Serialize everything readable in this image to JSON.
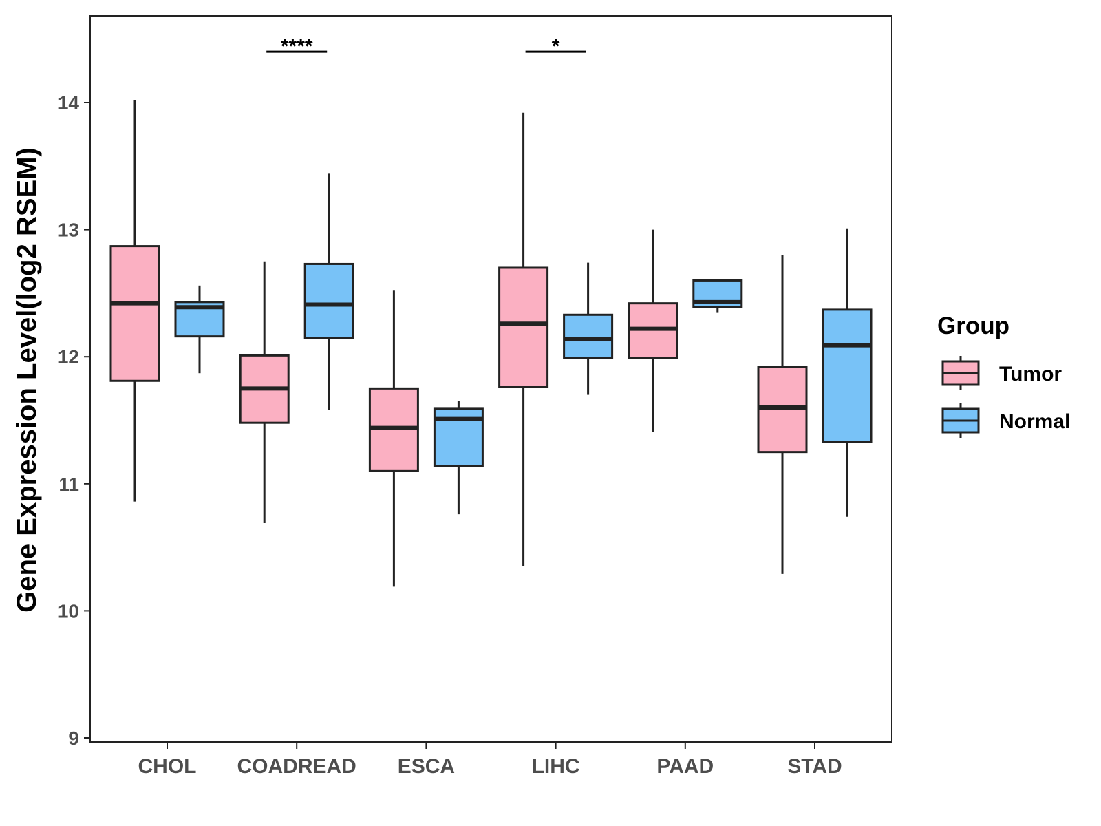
{
  "chart_data": {
    "type": "boxplot",
    "title": "",
    "xlabel": "",
    "ylabel": "Gene Expression Level(log2 RSEM)",
    "ylim": [
      9,
      14.75
    ],
    "yticks": [
      9,
      10,
      11,
      12,
      13,
      14
    ],
    "categories": [
      "CHOL",
      "COADREAD",
      "ESCA",
      "LIHC",
      "PAAD",
      "STAD"
    ],
    "legend": {
      "title": "Group",
      "position": "right"
    },
    "series": [
      {
        "name": "Tumor",
        "color": "#FBB0C2",
        "boxes": [
          {
            "category": "CHOL",
            "min": 10.86,
            "q1": 11.81,
            "median": 12.42,
            "q3": 12.87,
            "max": 14.02
          },
          {
            "category": "COADREAD",
            "min": 10.69,
            "q1": 11.48,
            "median": 11.75,
            "q3": 12.01,
            "max": 12.75
          },
          {
            "category": "ESCA",
            "min": 10.19,
            "q1": 11.1,
            "median": 11.44,
            "q3": 11.75,
            "max": 12.52
          },
          {
            "category": "LIHC",
            "min": 10.35,
            "q1": 11.76,
            "median": 12.26,
            "q3": 12.7,
            "max": 13.92
          },
          {
            "category": "PAAD",
            "min": 11.41,
            "q1": 11.99,
            "median": 12.22,
            "q3": 12.42,
            "max": 13.0
          },
          {
            "category": "STAD",
            "min": 10.29,
            "q1": 11.25,
            "median": 11.6,
            "q3": 11.92,
            "max": 12.8
          }
        ]
      },
      {
        "name": "Normal",
        "color": "#78C2F7",
        "boxes": [
          {
            "category": "CHOL",
            "min": 11.87,
            "q1": 12.16,
            "median": 12.39,
            "q3": 12.43,
            "max": 12.56
          },
          {
            "category": "COADREAD",
            "min": 11.58,
            "q1": 12.15,
            "median": 12.41,
            "q3": 12.73,
            "max": 13.44
          },
          {
            "category": "ESCA",
            "min": 10.76,
            "q1": 11.14,
            "median": 11.51,
            "q3": 11.59,
            "max": 11.65
          },
          {
            "category": "LIHC",
            "min": 11.7,
            "q1": 11.99,
            "median": 12.14,
            "q3": 12.33,
            "max": 12.74
          },
          {
            "category": "PAAD",
            "min": 12.35,
            "q1": 12.39,
            "median": 12.43,
            "q3": 12.6,
            "max": 12.6
          },
          {
            "category": "STAD",
            "min": 10.74,
            "q1": 11.33,
            "median": 12.09,
            "q3": 12.37,
            "max": 13.01
          }
        ]
      }
    ],
    "annotations": [
      {
        "category": "COADREAD",
        "label": "****",
        "y": 14.4
      },
      {
        "category": "LIHC",
        "label": "*",
        "y": 14.4
      }
    ]
  }
}
